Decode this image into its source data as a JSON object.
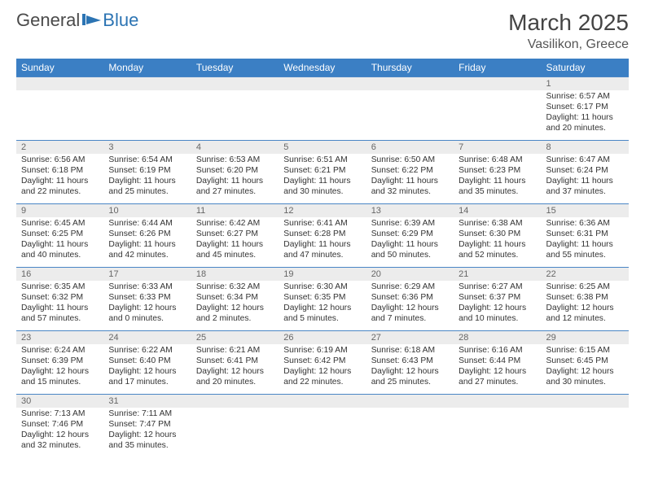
{
  "logo": {
    "text_a": "General",
    "text_b": "Blue"
  },
  "title": "March 2025",
  "location": "Vasilikon, Greece",
  "colors": {
    "header_bg": "#3b7fc4",
    "header_text": "#ffffff",
    "daynum_bg": "#ececec",
    "border": "#4a86c5",
    "text": "#333333",
    "logo_blue": "#2c74b3"
  },
  "day_headers": [
    "Sunday",
    "Monday",
    "Tuesday",
    "Wednesday",
    "Thursday",
    "Friday",
    "Saturday"
  ],
  "weeks": [
    [
      {
        "n": "",
        "sunrise": "",
        "sunset": "",
        "daylight": ""
      },
      {
        "n": "",
        "sunrise": "",
        "sunset": "",
        "daylight": ""
      },
      {
        "n": "",
        "sunrise": "",
        "sunset": "",
        "daylight": ""
      },
      {
        "n": "",
        "sunrise": "",
        "sunset": "",
        "daylight": ""
      },
      {
        "n": "",
        "sunrise": "",
        "sunset": "",
        "daylight": ""
      },
      {
        "n": "",
        "sunrise": "",
        "sunset": "",
        "daylight": ""
      },
      {
        "n": "1",
        "sunrise": "Sunrise: 6:57 AM",
        "sunset": "Sunset: 6:17 PM",
        "daylight": "Daylight: 11 hours and 20 minutes."
      }
    ],
    [
      {
        "n": "2",
        "sunrise": "Sunrise: 6:56 AM",
        "sunset": "Sunset: 6:18 PM",
        "daylight": "Daylight: 11 hours and 22 minutes."
      },
      {
        "n": "3",
        "sunrise": "Sunrise: 6:54 AM",
        "sunset": "Sunset: 6:19 PM",
        "daylight": "Daylight: 11 hours and 25 minutes."
      },
      {
        "n": "4",
        "sunrise": "Sunrise: 6:53 AM",
        "sunset": "Sunset: 6:20 PM",
        "daylight": "Daylight: 11 hours and 27 minutes."
      },
      {
        "n": "5",
        "sunrise": "Sunrise: 6:51 AM",
        "sunset": "Sunset: 6:21 PM",
        "daylight": "Daylight: 11 hours and 30 minutes."
      },
      {
        "n": "6",
        "sunrise": "Sunrise: 6:50 AM",
        "sunset": "Sunset: 6:22 PM",
        "daylight": "Daylight: 11 hours and 32 minutes."
      },
      {
        "n": "7",
        "sunrise": "Sunrise: 6:48 AM",
        "sunset": "Sunset: 6:23 PM",
        "daylight": "Daylight: 11 hours and 35 minutes."
      },
      {
        "n": "8",
        "sunrise": "Sunrise: 6:47 AM",
        "sunset": "Sunset: 6:24 PM",
        "daylight": "Daylight: 11 hours and 37 minutes."
      }
    ],
    [
      {
        "n": "9",
        "sunrise": "Sunrise: 6:45 AM",
        "sunset": "Sunset: 6:25 PM",
        "daylight": "Daylight: 11 hours and 40 minutes."
      },
      {
        "n": "10",
        "sunrise": "Sunrise: 6:44 AM",
        "sunset": "Sunset: 6:26 PM",
        "daylight": "Daylight: 11 hours and 42 minutes."
      },
      {
        "n": "11",
        "sunrise": "Sunrise: 6:42 AM",
        "sunset": "Sunset: 6:27 PM",
        "daylight": "Daylight: 11 hours and 45 minutes."
      },
      {
        "n": "12",
        "sunrise": "Sunrise: 6:41 AM",
        "sunset": "Sunset: 6:28 PM",
        "daylight": "Daylight: 11 hours and 47 minutes."
      },
      {
        "n": "13",
        "sunrise": "Sunrise: 6:39 AM",
        "sunset": "Sunset: 6:29 PM",
        "daylight": "Daylight: 11 hours and 50 minutes."
      },
      {
        "n": "14",
        "sunrise": "Sunrise: 6:38 AM",
        "sunset": "Sunset: 6:30 PM",
        "daylight": "Daylight: 11 hours and 52 minutes."
      },
      {
        "n": "15",
        "sunrise": "Sunrise: 6:36 AM",
        "sunset": "Sunset: 6:31 PM",
        "daylight": "Daylight: 11 hours and 55 minutes."
      }
    ],
    [
      {
        "n": "16",
        "sunrise": "Sunrise: 6:35 AM",
        "sunset": "Sunset: 6:32 PM",
        "daylight": "Daylight: 11 hours and 57 minutes."
      },
      {
        "n": "17",
        "sunrise": "Sunrise: 6:33 AM",
        "sunset": "Sunset: 6:33 PM",
        "daylight": "Daylight: 12 hours and 0 minutes."
      },
      {
        "n": "18",
        "sunrise": "Sunrise: 6:32 AM",
        "sunset": "Sunset: 6:34 PM",
        "daylight": "Daylight: 12 hours and 2 minutes."
      },
      {
        "n": "19",
        "sunrise": "Sunrise: 6:30 AM",
        "sunset": "Sunset: 6:35 PM",
        "daylight": "Daylight: 12 hours and 5 minutes."
      },
      {
        "n": "20",
        "sunrise": "Sunrise: 6:29 AM",
        "sunset": "Sunset: 6:36 PM",
        "daylight": "Daylight: 12 hours and 7 minutes."
      },
      {
        "n": "21",
        "sunrise": "Sunrise: 6:27 AM",
        "sunset": "Sunset: 6:37 PM",
        "daylight": "Daylight: 12 hours and 10 minutes."
      },
      {
        "n": "22",
        "sunrise": "Sunrise: 6:25 AM",
        "sunset": "Sunset: 6:38 PM",
        "daylight": "Daylight: 12 hours and 12 minutes."
      }
    ],
    [
      {
        "n": "23",
        "sunrise": "Sunrise: 6:24 AM",
        "sunset": "Sunset: 6:39 PM",
        "daylight": "Daylight: 12 hours and 15 minutes."
      },
      {
        "n": "24",
        "sunrise": "Sunrise: 6:22 AM",
        "sunset": "Sunset: 6:40 PM",
        "daylight": "Daylight: 12 hours and 17 minutes."
      },
      {
        "n": "25",
        "sunrise": "Sunrise: 6:21 AM",
        "sunset": "Sunset: 6:41 PM",
        "daylight": "Daylight: 12 hours and 20 minutes."
      },
      {
        "n": "26",
        "sunrise": "Sunrise: 6:19 AM",
        "sunset": "Sunset: 6:42 PM",
        "daylight": "Daylight: 12 hours and 22 minutes."
      },
      {
        "n": "27",
        "sunrise": "Sunrise: 6:18 AM",
        "sunset": "Sunset: 6:43 PM",
        "daylight": "Daylight: 12 hours and 25 minutes."
      },
      {
        "n": "28",
        "sunrise": "Sunrise: 6:16 AM",
        "sunset": "Sunset: 6:44 PM",
        "daylight": "Daylight: 12 hours and 27 minutes."
      },
      {
        "n": "29",
        "sunrise": "Sunrise: 6:15 AM",
        "sunset": "Sunset: 6:45 PM",
        "daylight": "Daylight: 12 hours and 30 minutes."
      }
    ],
    [
      {
        "n": "30",
        "sunrise": "Sunrise: 7:13 AM",
        "sunset": "Sunset: 7:46 PM",
        "daylight": "Daylight: 12 hours and 32 minutes."
      },
      {
        "n": "31",
        "sunrise": "Sunrise: 7:11 AM",
        "sunset": "Sunset: 7:47 PM",
        "daylight": "Daylight: 12 hours and 35 minutes."
      },
      {
        "n": "",
        "sunrise": "",
        "sunset": "",
        "daylight": ""
      },
      {
        "n": "",
        "sunrise": "",
        "sunset": "",
        "daylight": ""
      },
      {
        "n": "",
        "sunrise": "",
        "sunset": "",
        "daylight": ""
      },
      {
        "n": "",
        "sunrise": "",
        "sunset": "",
        "daylight": ""
      },
      {
        "n": "",
        "sunrise": "",
        "sunset": "",
        "daylight": ""
      }
    ]
  ]
}
